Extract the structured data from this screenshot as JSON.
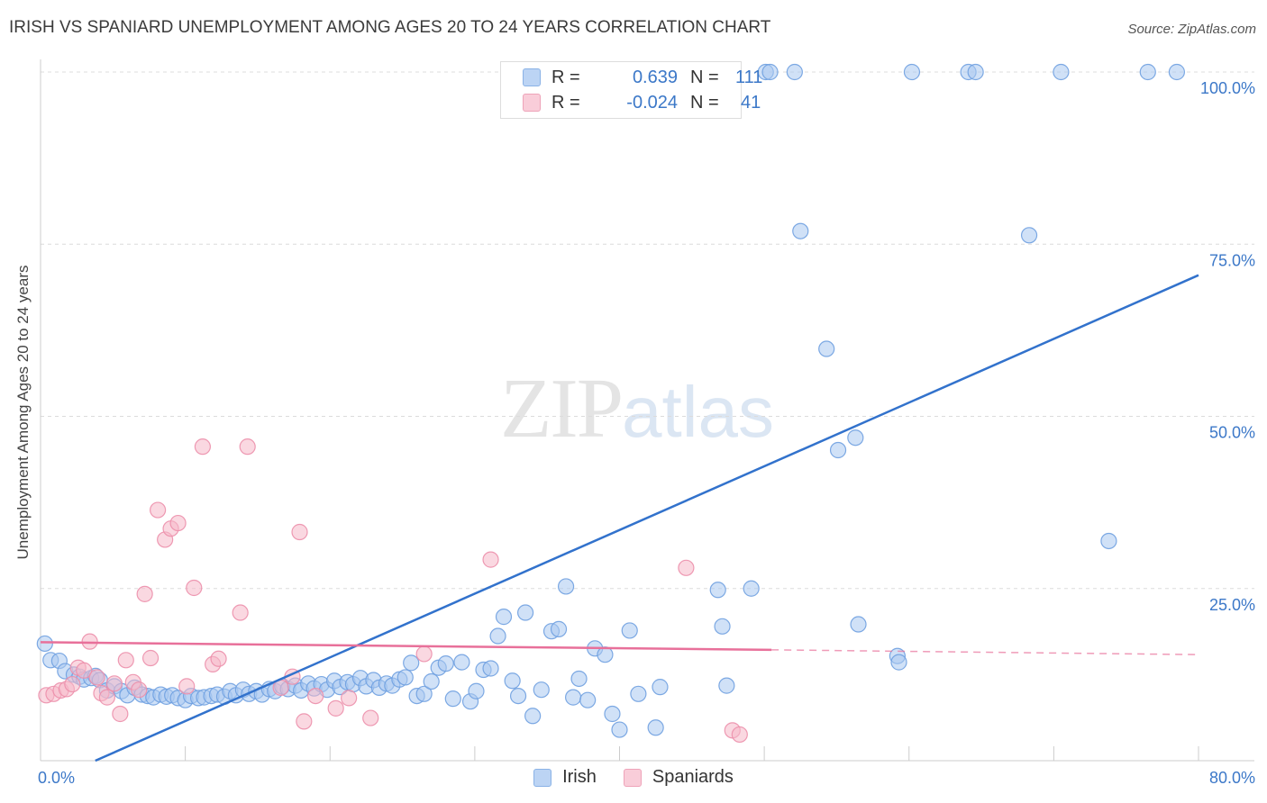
{
  "title": "IRISH VS SPANIARD UNEMPLOYMENT AMONG AGES 20 TO 24 YEARS CORRELATION CHART",
  "source": "Source: ZipAtlas.com",
  "watermark": {
    "zip": "ZIP",
    "atlas": "atlas"
  },
  "legend_top": [
    {
      "r_label": "R =",
      "r_value": "0.639",
      "n_label": "N =",
      "n_value": "111",
      "color": "#a9c8f0"
    },
    {
      "r_label": "R =",
      "r_value": "-0.024",
      "n_label": "N =",
      "n_value": "41",
      "color": "#f5b8c9"
    }
  ],
  "chart_data": {
    "type": "scatter",
    "xlabel": "",
    "ylabel": "Unemployment Among Ages 20 to 24 years",
    "xlim": [
      0,
      80
    ],
    "ylim": [
      0,
      100
    ],
    "x_tick_labels": [
      "0.0%",
      "80.0%"
    ],
    "y_tick_labels": [
      "100.0%",
      "75.0%",
      "50.0%",
      "25.0%"
    ],
    "y_ticks": [
      100,
      75,
      50,
      25
    ],
    "legend": "bottom-center",
    "grid": true,
    "series": [
      {
        "name": "Irish",
        "color": "#6fa0e0",
        "fill": "#a9c8f0",
        "trend": {
          "x": [
            0,
            80
          ],
          "y": [
            -3.5,
            70.5
          ],
          "color": "#3272cc"
        },
        "points": [
          [
            0.3,
            17
          ],
          [
            0.7,
            14.6
          ],
          [
            1.3,
            14.5
          ],
          [
            1.7,
            13
          ],
          [
            2.3,
            12.5
          ],
          [
            2.7,
            12.2
          ],
          [
            3,
            11.8
          ],
          [
            3.5,
            12
          ],
          [
            3.8,
            12.3
          ],
          [
            4.1,
            11.7
          ],
          [
            4.6,
            10.2
          ],
          [
            5.1,
            10.8
          ],
          [
            5.6,
            10.1
          ],
          [
            6,
            9.5
          ],
          [
            6.5,
            10.6
          ],
          [
            7,
            9.6
          ],
          [
            7.4,
            9.4
          ],
          [
            7.8,
            9.2
          ],
          [
            8.3,
            9.6
          ],
          [
            8.7,
            9.3
          ],
          [
            9.1,
            9.5
          ],
          [
            9.5,
            9.1
          ],
          [
            10,
            8.8
          ],
          [
            10.4,
            9.4
          ],
          [
            10.9,
            9.1
          ],
          [
            11.3,
            9.2
          ],
          [
            11.8,
            9.4
          ],
          [
            12.2,
            9.6
          ],
          [
            12.7,
            9.3
          ],
          [
            13.1,
            10.1
          ],
          [
            13.5,
            9.5
          ],
          [
            14,
            10.3
          ],
          [
            14.4,
            9.7
          ],
          [
            14.9,
            10.1
          ],
          [
            15.3,
            9.6
          ],
          [
            15.8,
            10.4
          ],
          [
            16.2,
            10.1
          ],
          [
            16.7,
            10.8
          ],
          [
            17.1,
            10.4
          ],
          [
            17.6,
            10.9
          ],
          [
            18,
            10.2
          ],
          [
            18.5,
            11.2
          ],
          [
            18.9,
            10.5
          ],
          [
            19.4,
            11.1
          ],
          [
            19.8,
            10.3
          ],
          [
            20.3,
            11.6
          ],
          [
            20.7,
            10.7
          ],
          [
            21.2,
            11.4
          ],
          [
            21.6,
            11.1
          ],
          [
            22.1,
            12
          ],
          [
            22.5,
            10.8
          ],
          [
            23,
            11.7
          ],
          [
            23.4,
            10.6
          ],
          [
            23.9,
            11.2
          ],
          [
            24.3,
            10.9
          ],
          [
            24.8,
            11.8
          ],
          [
            25.2,
            12.1
          ],
          [
            25.6,
            14.2
          ],
          [
            26,
            9.4
          ],
          [
            26.5,
            9.7
          ],
          [
            27,
            11.5
          ],
          [
            27.5,
            13.5
          ],
          [
            28,
            14.1
          ],
          [
            28.5,
            9
          ],
          [
            29.1,
            14.3
          ],
          [
            29.7,
            8.6
          ],
          [
            30.1,
            10.1
          ],
          [
            30.6,
            13.2
          ],
          [
            31.1,
            13.4
          ],
          [
            31.6,
            18.1
          ],
          [
            32,
            20.9
          ],
          [
            32.6,
            11.6
          ],
          [
            33,
            9.4
          ],
          [
            33.5,
            21.5
          ],
          [
            34,
            6.5
          ],
          [
            34.6,
            10.3
          ],
          [
            35.3,
            18.8
          ],
          [
            35.8,
            19.1
          ],
          [
            36.3,
            25.3
          ],
          [
            36.8,
            9.2
          ],
          [
            37.2,
            11.9
          ],
          [
            37.8,
            8.8
          ],
          [
            38.3,
            16.3
          ],
          [
            39,
            15.4
          ],
          [
            39.5,
            6.8
          ],
          [
            40,
            4.5
          ],
          [
            40.7,
            18.9
          ],
          [
            41.3,
            9.7
          ],
          [
            42.5,
            4.8
          ],
          [
            42.8,
            10.7
          ],
          [
            46.8,
            24.8
          ],
          [
            47.1,
            19.5
          ],
          [
            47.4,
            10.9
          ],
          [
            49.1,
            25
          ],
          [
            50.1,
            100
          ],
          [
            50.4,
            100
          ],
          [
            52.1,
            100
          ],
          [
            52.5,
            76.9
          ],
          [
            54.3,
            59.8
          ],
          [
            55.1,
            45.1
          ],
          [
            56.3,
            46.9
          ],
          [
            56.5,
            19.8
          ],
          [
            59.2,
            15.2
          ],
          [
            59.3,
            14.3
          ],
          [
            60.2,
            100
          ],
          [
            64.1,
            100
          ],
          [
            64.6,
            100
          ],
          [
            68.3,
            76.3
          ],
          [
            70.5,
            100
          ],
          [
            73.8,
            31.9
          ],
          [
            76.5,
            100
          ],
          [
            78.5,
            100
          ]
        ]
      },
      {
        "name": "Spaniards",
        "color": "#ec8fab",
        "fill": "#f5b8c9",
        "trend": {
          "x": [
            0,
            50.5
          ],
          "y": [
            17.2,
            16.1
          ],
          "color": "#e8709a",
          "dashed_to": [
            80,
            15.4
          ]
        },
        "points": [
          [
            0.4,
            9.5
          ],
          [
            0.9,
            9.7
          ],
          [
            1.4,
            10.2
          ],
          [
            1.8,
            10.4
          ],
          [
            2.2,
            11.1
          ],
          [
            2.6,
            13.5
          ],
          [
            3,
            13.1
          ],
          [
            3.4,
            17.3
          ],
          [
            3.9,
            12.1
          ],
          [
            4.2,
            9.8
          ],
          [
            4.6,
            9.2
          ],
          [
            5.1,
            11.2
          ],
          [
            5.5,
            6.8
          ],
          [
            5.9,
            14.6
          ],
          [
            6.4,
            11.4
          ],
          [
            6.8,
            10.3
          ],
          [
            7.2,
            24.2
          ],
          [
            7.6,
            14.9
          ],
          [
            8.1,
            36.4
          ],
          [
            8.6,
            32.1
          ],
          [
            9,
            33.7
          ],
          [
            9.5,
            34.5
          ],
          [
            10.1,
            10.8
          ],
          [
            10.6,
            25.1
          ],
          [
            11.2,
            45.6
          ],
          [
            11.9,
            14
          ],
          [
            12.3,
            14.8
          ],
          [
            13.8,
            21.5
          ],
          [
            14.3,
            45.6
          ],
          [
            16.6,
            10.6
          ],
          [
            17.4,
            12.2
          ],
          [
            17.9,
            33.2
          ],
          [
            18.2,
            5.7
          ],
          [
            19,
            9.4
          ],
          [
            20.4,
            7.6
          ],
          [
            21.3,
            9.1
          ],
          [
            22.8,
            6.2
          ],
          [
            26.5,
            15.5
          ],
          [
            31.1,
            29.2
          ],
          [
            44.6,
            28
          ],
          [
            47.8,
            4.4
          ],
          [
            48.3,
            3.8
          ]
        ]
      }
    ]
  }
}
